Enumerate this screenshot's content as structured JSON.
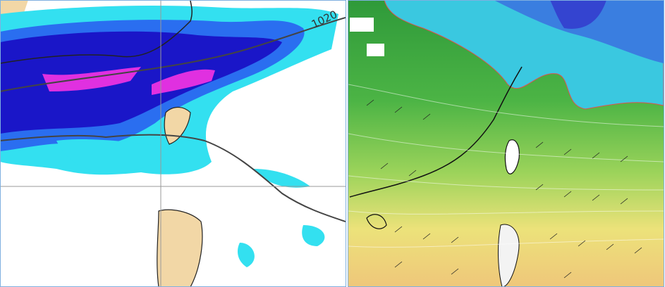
{
  "left_map": {
    "isobar_label": "1020"
  }
}
